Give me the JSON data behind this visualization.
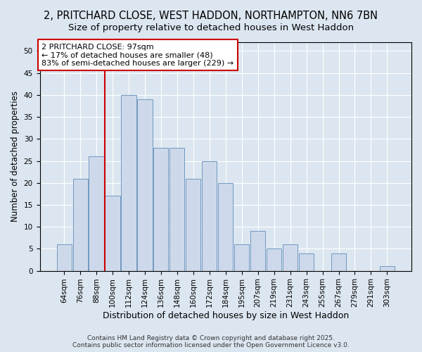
{
  "title": "2, PRITCHARD CLOSE, WEST HADDON, NORTHAMPTON, NN6 7BN",
  "subtitle": "Size of property relative to detached houses in West Haddon",
  "xlabel": "Distribution of detached houses by size in West Haddon",
  "ylabel": "Number of detached properties",
  "categories": [
    "64sqm",
    "76sqm",
    "88sqm",
    "100sqm",
    "112sqm",
    "124sqm",
    "136sqm",
    "148sqm",
    "160sqm",
    "172sqm",
    "184sqm",
    "195sqm",
    "207sqm",
    "219sqm",
    "231sqm",
    "243sqm",
    "255sqm",
    "267sqm",
    "279sqm",
    "291sqm",
    "303sqm"
  ],
  "values": [
    6,
    21,
    26,
    17,
    40,
    39,
    28,
    28,
    21,
    25,
    20,
    6,
    9,
    5,
    6,
    4,
    0,
    4,
    0,
    0,
    1
  ],
  "bar_color": "#cdd9ea",
  "bar_edge_color": "#7098c0",
  "vline_x_index": 2.5,
  "vline_color": "#cc0000",
  "annotation_line1": "2 PRITCHARD CLOSE: 97sqm",
  "annotation_line2": "← 17% of detached houses are smaller (48)",
  "annotation_line3": "83% of semi-detached houses are larger (229) →",
  "annotation_box_color": "white",
  "annotation_box_edge_color": "#cc0000",
  "ylim": [
    0,
    52
  ],
  "yticks": [
    0,
    5,
    10,
    15,
    20,
    25,
    30,
    35,
    40,
    45,
    50
  ],
  "background_color": "#dce6f0",
  "plot_background": "#dce6f0",
  "grid_color": "white",
  "footer": "Contains HM Land Registry data © Crown copyright and database right 2025.\nContains public sector information licensed under the Open Government Licence v3.0.",
  "title_fontsize": 10.5,
  "subtitle_fontsize": 9.5,
  "xlabel_fontsize": 9,
  "ylabel_fontsize": 8.5,
  "tick_fontsize": 7.5,
  "annotation_fontsize": 8,
  "footer_fontsize": 6.5
}
